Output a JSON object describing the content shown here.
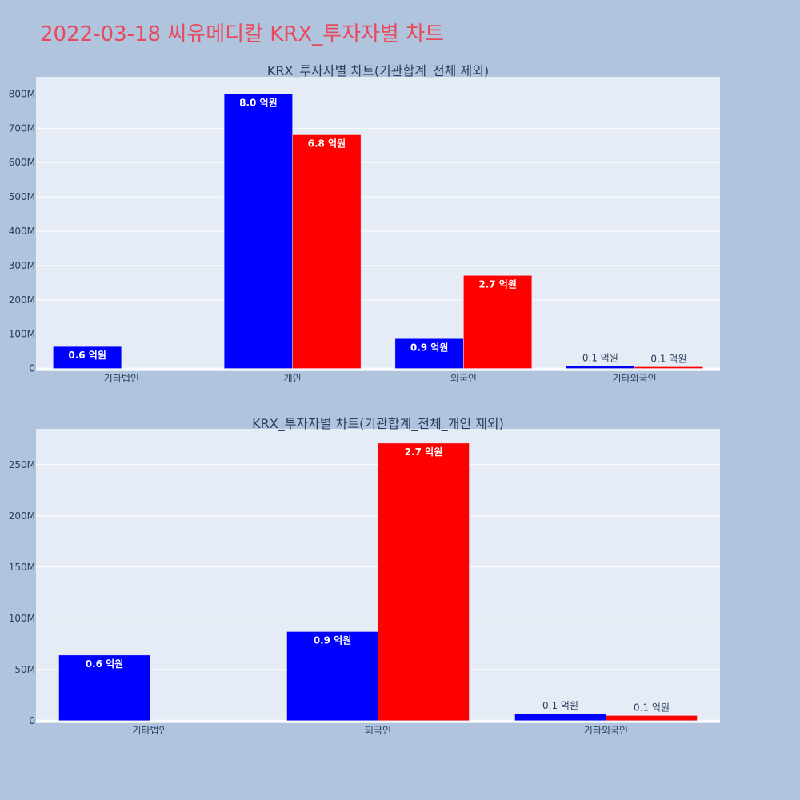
{
  "page": {
    "title": "2022-03-18 씨유메디칼 KRX_투자자별 차트"
  },
  "colors": {
    "background": "#b0c4de",
    "plot_bg": "#e5ecf6",
    "title": "#e8495c",
    "series_blue": "#0000ff",
    "series_red": "#ff0000"
  },
  "chart_data": [
    {
      "type": "bar",
      "title": "KRX_투자자별 차트(기관합계_전체 제외)",
      "categories": [
        "기타법인",
        "개인",
        "외국인",
        "기타외국인"
      ],
      "series": [
        {
          "color": "#0000ff",
          "values": [
            64000000,
            800000000,
            87000000,
            7000000
          ],
          "labels": [
            "0.6 억원",
            "8.0 억원",
            "0.9 억원",
            "0.1 억원"
          ]
        },
        {
          "color": "#ff0000",
          "values": [
            0,
            681000000,
            271000000,
            5000000
          ],
          "labels": [
            "",
            "6.8 억원",
            "2.7 억원",
            "0.1 억원"
          ]
        }
      ],
      "ylim": [
        -8000000,
        850000000
      ],
      "yticks": [
        0,
        100000000,
        200000000,
        300000000,
        400000000,
        500000000,
        600000000,
        700000000,
        800000000
      ],
      "ytick_labels": [
        "0",
        "100M",
        "200M",
        "300M",
        "400M",
        "500M",
        "600M",
        "700M",
        "800M"
      ],
      "grid": true,
      "legend": "none"
    },
    {
      "type": "bar",
      "title": "KRX_투자자별 차트(기관합계_전체_개인 제외)",
      "categories": [
        "기타법인",
        "외국인",
        "기타외국인"
      ],
      "series": [
        {
          "color": "#0000ff",
          "values": [
            64000000,
            87000000,
            7000000
          ],
          "labels": [
            "0.6 억원",
            "0.9 억원",
            "0.1 억원"
          ]
        },
        {
          "color": "#ff0000",
          "values": [
            0,
            271000000,
            5000000
          ],
          "labels": [
            "",
            "2.7 억원",
            "0.1 억원"
          ]
        }
      ],
      "ylim": [
        -2500000,
        285000000
      ],
      "yticks": [
        0,
        50000000,
        100000000,
        150000000,
        200000000,
        250000000
      ],
      "ytick_labels": [
        "0",
        "50M",
        "100M",
        "150M",
        "200M",
        "250M"
      ],
      "grid": true,
      "legend": "none"
    }
  ]
}
